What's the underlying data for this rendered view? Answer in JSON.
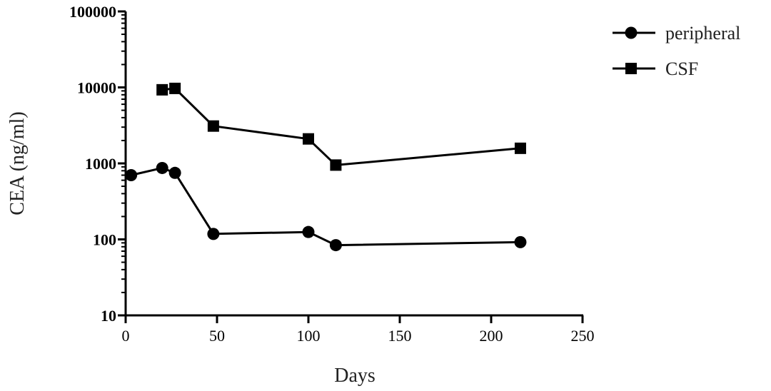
{
  "chart_data": {
    "type": "line",
    "title": "",
    "xlabel": "Days",
    "ylabel": "CEA (ng/ml)",
    "xlim": [
      0,
      250
    ],
    "ylim": [
      10,
      100000
    ],
    "yscale": "log",
    "x_ticks": [
      "0",
      "50",
      "100",
      "150",
      "200",
      "250"
    ],
    "y_ticks": [
      "10",
      "100",
      "1000",
      "10000",
      "100000"
    ],
    "grid": false,
    "legend_position": "top-right",
    "series": [
      {
        "name": "peripheral",
        "marker": "circle",
        "color": "#000000",
        "points": [
          {
            "x": 3,
            "y": 700
          },
          {
            "x": 20,
            "y": 870
          },
          {
            "x": 27,
            "y": 750
          },
          {
            "x": 48,
            "y": 118
          },
          {
            "x": 100,
            "y": 125
          },
          {
            "x": 115,
            "y": 84
          },
          {
            "x": 216,
            "y": 92
          }
        ]
      },
      {
        "name": "CSF",
        "marker": "square",
        "color": "#000000",
        "points": [
          {
            "x": 20,
            "y": 9300
          },
          {
            "x": 27,
            "y": 9700
          },
          {
            "x": 48,
            "y": 3100
          },
          {
            "x": 100,
            "y": 2100
          },
          {
            "x": 115,
            "y": 950
          },
          {
            "x": 216,
            "y": 1580
          }
        ]
      }
    ]
  }
}
